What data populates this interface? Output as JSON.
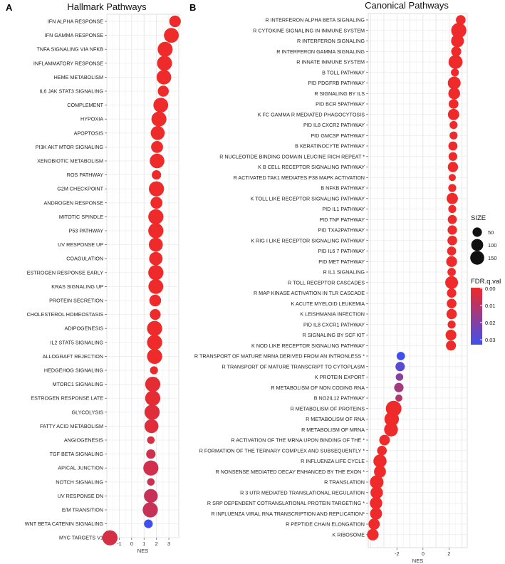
{
  "figure": {
    "panels": [
      {
        "letter": "A",
        "title": "Hallmark Pathways"
      },
      {
        "letter": "B",
        "title": "Canonical Pathways"
      }
    ],
    "legend": {
      "size_title": "SIZE",
      "size_labels": [
        "50",
        "100",
        "150"
      ],
      "color_title": "FDR.q.val",
      "color_labels": [
        "0.00",
        "0.01",
        "0.02",
        "0.03"
      ],
      "color_low": "#ee2a2a",
      "color_high": "#3f4fee"
    }
  },
  "chart_data": [
    {
      "type": "scatter",
      "title": "Hallmark Pathways",
      "xlabel": "NES",
      "ylabel": "",
      "xlim": [
        -2,
        3.8
      ],
      "xticks": [
        -1,
        0,
        1,
        2,
        3
      ],
      "size_encoding": "SIZE",
      "color_encoding": "FDR.q.val",
      "points": [
        {
          "label": "IFN ALPHA RESPONSE",
          "nes": 3.5,
          "size": 90,
          "fdr": 0.0
        },
        {
          "label": "IFN GAMMA RESPONSE",
          "nes": 3.2,
          "size": 175,
          "fdr": 0.0
        },
        {
          "label": "TNFA SIGNALING VIA NFKB",
          "nes": 2.7,
          "size": 180,
          "fdr": 0.0
        },
        {
          "label": "INFLAMMATORY RESPONSE",
          "nes": 2.65,
          "size": 180,
          "fdr": 0.0
        },
        {
          "label": "HEME METABOLISM",
          "nes": 2.6,
          "size": 170,
          "fdr": 0.0
        },
        {
          "label": "IL6 JAK STAT3 SIGNALING",
          "nes": 2.55,
          "size": 80,
          "fdr": 0.0
        },
        {
          "label": "COMPLEMENT",
          "nes": 2.35,
          "size": 175,
          "fdr": 0.0
        },
        {
          "label": "HYPOXIA",
          "nes": 2.2,
          "size": 180,
          "fdr": 0.0
        },
        {
          "label": "APOPTOSIS",
          "nes": 2.1,
          "size": 150,
          "fdr": 0.0
        },
        {
          "label": "PI3K AKT MTOR SIGNALING",
          "nes": 2.05,
          "size": 100,
          "fdr": 0.0
        },
        {
          "label": "XENOBIOTIC METABOLISM",
          "nes": 2.05,
          "size": 170,
          "fdr": 0.0
        },
        {
          "label": "ROS PATHWAY",
          "nes": 2.0,
          "size": 50,
          "fdr": 0.0
        },
        {
          "label": "G2M CHECKPOINT",
          "nes": 2.0,
          "size": 185,
          "fdr": 0.0
        },
        {
          "label": "ANDROGEN RESPONSE",
          "nes": 2.0,
          "size": 100,
          "fdr": 0.0
        },
        {
          "label": "MITOTIC SPINDLE",
          "nes": 1.95,
          "size": 185,
          "fdr": 0.0
        },
        {
          "label": "P53 PATHWAY",
          "nes": 1.95,
          "size": 185,
          "fdr": 0.0
        },
        {
          "label": "UV RESPONSE UP",
          "nes": 1.95,
          "size": 150,
          "fdr": 0.0
        },
        {
          "label": "COAGULATION",
          "nes": 1.95,
          "size": 135,
          "fdr": 0.0
        },
        {
          "label": "ESTROGEN RESPONSE EARLY",
          "nes": 1.95,
          "size": 185,
          "fdr": 0.0
        },
        {
          "label": "KRAS SIGNALING UP",
          "nes": 1.95,
          "size": 175,
          "fdr": 0.0
        },
        {
          "label": "PROTEIN SECRETION",
          "nes": 1.9,
          "size": 95,
          "fdr": 0.0
        },
        {
          "label": "CHOLESTEROL HOMEOSTASIS",
          "nes": 1.9,
          "size": 75,
          "fdr": 0.0
        },
        {
          "label": "ADIPOGENESIS",
          "nes": 1.85,
          "size": 185,
          "fdr": 0.0
        },
        {
          "label": "IL2 STAT5 SIGNALING",
          "nes": 1.85,
          "size": 185,
          "fdr": 0.0
        },
        {
          "label": "ALLOGRAFT REJECTION",
          "nes": 1.85,
          "size": 185,
          "fdr": 0.0
        },
        {
          "label": "HEDGEHOG SIGNALING",
          "nes": 1.8,
          "size": 30,
          "fdr": 0.001
        },
        {
          "label": "MTORC1 SIGNALING",
          "nes": 1.7,
          "size": 185,
          "fdr": 0.002
        },
        {
          "label": "ESTROGEN RESPONSE LATE",
          "nes": 1.7,
          "size": 185,
          "fdr": 0.002
        },
        {
          "label": "GLYCOLYSIS",
          "nes": 1.65,
          "size": 185,
          "fdr": 0.003
        },
        {
          "label": "FATTY ACID METABOLISM",
          "nes": 1.6,
          "size": 150,
          "fdr": 0.003
        },
        {
          "label": "ANGIOGENESIS",
          "nes": 1.55,
          "size": 25,
          "fdr": 0.004
        },
        {
          "label": "TGF BETA SIGNALING",
          "nes": 1.55,
          "size": 50,
          "fdr": 0.006
        },
        {
          "label": "APICAL JUNCTION",
          "nes": 1.55,
          "size": 185,
          "fdr": 0.006
        },
        {
          "label": "NOTCH SIGNALING",
          "nes": 1.55,
          "size": 25,
          "fdr": 0.007
        },
        {
          "label": "UV RESPONSE DN",
          "nes": 1.55,
          "size": 145,
          "fdr": 0.008
        },
        {
          "label": "E/M TRANSITION",
          "nes": 1.5,
          "size": 185,
          "fdr": 0.008
        },
        {
          "label": "WNT BETA CATENIN SIGNALING",
          "nes": 1.35,
          "size": 40,
          "fdr": 0.035
        },
        {
          "label": "MYC TARGETS V1",
          "nes": -1.75,
          "size": 185,
          "fdr": 0.005
        }
      ]
    },
    {
      "type": "scatter",
      "title": "Canonical Pathways",
      "xlabel": "NES",
      "ylabel": "",
      "xlim": [
        -4.2,
        3.4
      ],
      "xticks": [
        -2,
        0,
        2
      ],
      "size_encoding": "SIZE",
      "color_encoding": "FDR.q.val",
      "points": [
        {
          "label": "R INTERFERON ALPHA BETA SIGNALING",
          "nes": 2.9,
          "size": 55,
          "fdr": 0.0
        },
        {
          "label": "R CYTOKINE SIGNALING IN IMMUNE SYSTEM",
          "nes": 2.75,
          "size": 185,
          "fdr": 0.0
        },
        {
          "label": "R INTERFERON SIGNALING",
          "nes": 2.65,
          "size": 120,
          "fdr": 0.0
        },
        {
          "label": "R INTERFERON GAMMA SIGNALING",
          "nes": 2.55,
          "size": 60,
          "fdr": 0.0
        },
        {
          "label": "R INNATE IMMUNE SYSTEM",
          "nes": 2.5,
          "size": 150,
          "fdr": 0.0
        },
        {
          "label": "B TOLL PATHWAY",
          "nes": 2.45,
          "size": 30,
          "fdr": 0.0
        },
        {
          "label": "PID PDGFRB PATHWAY",
          "nes": 2.4,
          "size": 120,
          "fdr": 0.0
        },
        {
          "label": "R SIGNALING BY ILS",
          "nes": 2.4,
          "size": 95,
          "fdr": 0.0
        },
        {
          "label": "PID BCR 5PATHWAY",
          "nes": 2.35,
          "size": 55,
          "fdr": 0.0
        },
        {
          "label": "K FC GAMMA R MEDIATED PHAGOCYTOSIS",
          "nes": 2.35,
          "size": 85,
          "fdr": 0.0
        },
        {
          "label": "PID IL8 CXCR2 PATHWAY",
          "nes": 2.35,
          "size": 30,
          "fdr": 0.0
        },
        {
          "label": "PID GMCSF PATHWAY",
          "nes": 2.35,
          "size": 30,
          "fdr": 0.0
        },
        {
          "label": "B KERATINOCYTE PATHWAY",
          "nes": 2.3,
          "size": 45,
          "fdr": 0.0
        },
        {
          "label": "R NUCLEOTIDE BINDING DOMAIN LEUCINE RICH REPEAT *",
          "nes": 2.3,
          "size": 40,
          "fdr": 0.0
        },
        {
          "label": "K B CELL RECEPTOR SIGNALING PATHWAY",
          "nes": 2.3,
          "size": 65,
          "fdr": 0.0
        },
        {
          "label": "R ACTIVATED TAK1 MEDIATES P38 MAPK ACTIVATION",
          "nes": 2.25,
          "size": 20,
          "fdr": 0.0
        },
        {
          "label": "B NFKB PATHWAY",
          "nes": 2.25,
          "size": 30,
          "fdr": 0.0
        },
        {
          "label": "K TOLL LIKE RECEPTOR SIGNALING PATHWAY",
          "nes": 2.25,
          "size": 85,
          "fdr": 0.0
        },
        {
          "label": "PID IL1 PATHWAY",
          "nes": 2.25,
          "size": 30,
          "fdr": 0.0
        },
        {
          "label": "PID TNF PATHWAY",
          "nes": 2.25,
          "size": 45,
          "fdr": 0.0
        },
        {
          "label": "PID TXA2PATHWAY",
          "nes": 2.25,
          "size": 50,
          "fdr": 0.0
        },
        {
          "label": "K RIG I LIKE RECEPTOR SIGNALING PATHWAY",
          "nes": 2.25,
          "size": 55,
          "fdr": 0.0
        },
        {
          "label": "PID IL6 7 PATHWAY",
          "nes": 2.2,
          "size": 45,
          "fdr": 0.0
        },
        {
          "label": "PID MET PATHWAY",
          "nes": 2.2,
          "size": 75,
          "fdr": 0.0
        },
        {
          "label": "R IL1 SIGNALING",
          "nes": 2.2,
          "size": 35,
          "fdr": 0.0
        },
        {
          "label": "R TOLL RECEPTOR CASCADES",
          "nes": 2.2,
          "size": 120,
          "fdr": 0.0
        },
        {
          "label": "R MAP KINASE ACTIVATION IN TLR CASCADE",
          "nes": 2.2,
          "size": 50,
          "fdr": 0.0
        },
        {
          "label": "K ACUTE MYELOID LEUKEMIA",
          "nes": 2.2,
          "size": 55,
          "fdr": 0.0
        },
        {
          "label": "K LEISHMANIA INFECTION",
          "nes": 2.2,
          "size": 65,
          "fdr": 0.0
        },
        {
          "label": "PID IL8 CXCR1 PATHWAY",
          "nes": 2.2,
          "size": 30,
          "fdr": 0.0
        },
        {
          "label": "R SIGNALING BY SCF KIT",
          "nes": 2.15,
          "size": 75,
          "fdr": 0.0
        },
        {
          "label": "K NOD LIKE RECEPTOR SIGNALING PATHWAY",
          "nes": 2.15,
          "size": 60,
          "fdr": 0.0
        },
        {
          "label": "R TRANSPORT OF MATURE MRNA DERIVED FROM AN INTRONLESS *",
          "nes": -1.7,
          "size": 35,
          "fdr": 0.035
        },
        {
          "label": "R TRANSPORT OF MATURE TRANSCRIPT TO CYTOPLASM",
          "nes": -1.75,
          "size": 50,
          "fdr": 0.03
        },
        {
          "label": "K PROTEIN EXPORT",
          "nes": -1.8,
          "size": 25,
          "fdr": 0.02
        },
        {
          "label": "R METABOLISM OF NON CODING RNA",
          "nes": -1.85,
          "size": 50,
          "fdr": 0.015
        },
        {
          "label": "B NO2IL12 PATHWAY",
          "nes": -1.85,
          "size": 20,
          "fdr": 0.012
        },
        {
          "label": "R METABOLISM OF PROTEINS",
          "nes": -2.25,
          "size": 200,
          "fdr": 0.0
        },
        {
          "label": "R METABOLISM OF RNA",
          "nes": -2.4,
          "size": 165,
          "fdr": 0.0
        },
        {
          "label": "R METABOLISM OF MRNA",
          "nes": -2.45,
          "size": 145,
          "fdr": 0.0
        },
        {
          "label": "R ACTIVATION OF THE MRNA UPON BINDING OF THE *",
          "nes": -2.95,
          "size": 70,
          "fdr": 0.0
        },
        {
          "label": "R FORMATION OF THE TERNARY COMPLEX AND SUBSEQUENTLY *",
          "nes": -3.15,
          "size": 55,
          "fdr": 0.0
        },
        {
          "label": "R INFLUENZA LIFE CYCLE",
          "nes": -3.3,
          "size": 130,
          "fdr": 0.0
        },
        {
          "label": "R NONSENSE MEDIATED DECAY ENHANCED BY THE EXON *",
          "nes": -3.3,
          "size": 100,
          "fdr": 0.0
        },
        {
          "label": "R TRANSLATION",
          "nes": -3.55,
          "size": 140,
          "fdr": 0.0
        },
        {
          "label": "R 3 UTR MEDIATED TRANSLATIONAL REGULATION",
          "nes": -3.55,
          "size": 110,
          "fdr": 0.0
        },
        {
          "label": "R SRP DEPENDENT COTRANSLATIONAL PROTEIN TARGETING *",
          "nes": -3.6,
          "size": 110,
          "fdr": 0.0
        },
        {
          "label": "R INFLUENZA VIRAL RNA TRANSCRIPTION AND REPLICATION*",
          "nes": -3.6,
          "size": 100,
          "fdr": 0.0
        },
        {
          "label": "R PEPTIDE CHAIN ELONGATION",
          "nes": -3.75,
          "size": 85,
          "fdr": 0.0
        },
        {
          "label": "K RIBOSOME",
          "nes": -3.85,
          "size": 90,
          "fdr": 0.0
        }
      ]
    }
  ]
}
